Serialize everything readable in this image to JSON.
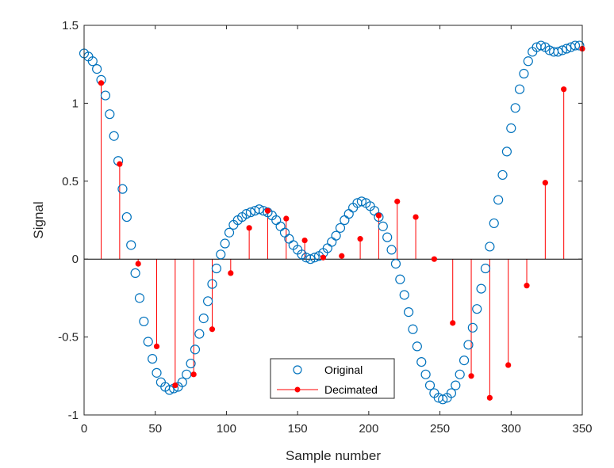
{
  "chart_data": {
    "type": "scatter",
    "xlabel": "Sample number",
    "ylabel": "Signal",
    "xlim": [
      0,
      350
    ],
    "ylim": [
      -1,
      1.5
    ],
    "xticks": [
      "0",
      "50",
      "100",
      "150",
      "200",
      "250",
      "300",
      "350"
    ],
    "yticks": [
      "-1",
      "-0.5",
      "0",
      "0.5",
      "1",
      "1.5"
    ],
    "grid": false,
    "legend_position": "bottom-center",
    "series": [
      {
        "name": "Original",
        "style": "open-circle",
        "color": "#0072BD",
        "x": [
          0,
          3,
          6,
          9,
          12,
          15,
          18,
          21,
          24,
          27,
          30,
          33,
          36,
          39,
          42,
          45,
          48,
          51,
          54,
          57,
          60,
          63,
          66,
          69,
          72,
          75,
          78,
          81,
          84,
          87,
          90,
          93,
          96,
          99,
          102,
          105,
          108,
          111,
          114,
          117,
          120,
          123,
          126,
          129,
          132,
          135,
          138,
          141,
          144,
          147,
          150,
          153,
          156,
          159,
          162,
          165,
          168,
          171,
          174,
          177,
          180,
          183,
          186,
          189,
          192,
          195,
          198,
          201,
          204,
          207,
          210,
          213,
          216,
          219,
          222,
          225,
          228,
          231,
          234,
          237,
          240,
          243,
          246,
          249,
          252,
          255,
          258,
          261,
          264,
          267,
          270,
          273,
          276,
          279,
          282,
          285,
          288,
          291,
          294,
          297,
          300,
          303,
          306,
          309,
          312,
          315,
          318,
          321,
          324,
          327,
          330,
          333,
          336,
          339,
          342,
          345,
          348
        ],
        "y": [
          1.32,
          1.3,
          1.27,
          1.22,
          1.15,
          1.05,
          0.93,
          0.79,
          0.63,
          0.45,
          0.27,
          0.09,
          -0.09,
          -0.25,
          -0.4,
          -0.53,
          -0.64,
          -0.73,
          -0.79,
          -0.82,
          -0.84,
          -0.83,
          -0.82,
          -0.79,
          -0.74,
          -0.67,
          -0.58,
          -0.48,
          -0.38,
          -0.27,
          -0.16,
          -0.06,
          0.03,
          0.1,
          0.17,
          0.22,
          0.25,
          0.27,
          0.29,
          0.3,
          0.31,
          0.32,
          0.31,
          0.3,
          0.28,
          0.25,
          0.21,
          0.17,
          0.13,
          0.09,
          0.06,
          0.03,
          0.01,
          0.0,
          0.01,
          0.02,
          0.04,
          0.07,
          0.11,
          0.15,
          0.2,
          0.25,
          0.29,
          0.33,
          0.36,
          0.37,
          0.36,
          0.34,
          0.31,
          0.27,
          0.21,
          0.14,
          0.06,
          -0.03,
          -0.13,
          -0.23,
          -0.34,
          -0.45,
          -0.56,
          -0.66,
          -0.74,
          -0.81,
          -0.86,
          -0.89,
          -0.9,
          -0.89,
          -0.86,
          -0.81,
          -0.74,
          -0.65,
          -0.55,
          -0.44,
          -0.32,
          -0.19,
          -0.06,
          0.08,
          0.23,
          0.38,
          0.54,
          0.69,
          0.84,
          0.97,
          1.09,
          1.19,
          1.27,
          1.33,
          1.36,
          1.37,
          1.36,
          1.34,
          1.33,
          1.33,
          1.34,
          1.35,
          1.36,
          1.37,
          1.37
        ]
      },
      {
        "name": "Decimated",
        "style": "stem-filled",
        "color": "#FF0000",
        "x": [
          12,
          25,
          38,
          51,
          64,
          77,
          90,
          103,
          116,
          129,
          142,
          155,
          168,
          181,
          194,
          207,
          220,
          233,
          246,
          259,
          272,
          285,
          298,
          311,
          324,
          337,
          350
        ],
        "y": [
          1.13,
          0.61,
          -0.03,
          -0.56,
          -0.81,
          -0.74,
          -0.45,
          -0.09,
          0.2,
          0.31,
          0.26,
          0.12,
          0.01,
          0.02,
          0.13,
          0.28,
          0.37,
          0.27,
          0.0,
          -0.41,
          -0.75,
          -0.89,
          -0.68,
          -0.17,
          0.49,
          1.09,
          1.35
        ]
      }
    ]
  }
}
